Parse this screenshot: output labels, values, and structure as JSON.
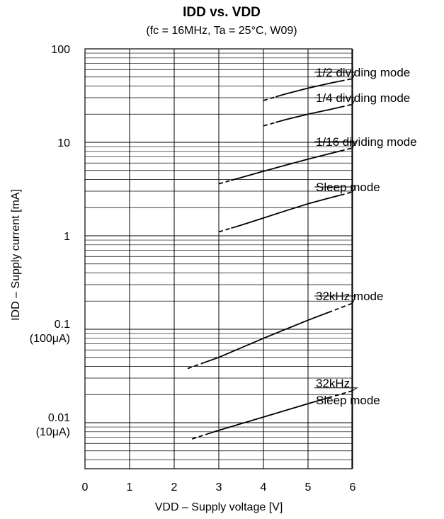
{
  "chart_data": {
    "type": "line",
    "title": "IDD vs. VDD",
    "subtitle": "(fc = 16MHz, Ta = 25°C, W09)",
    "xlabel": "VDD – Supply voltage [V]",
    "ylabel": "IDD – Supply current [mA]",
    "xlim": [
      0,
      6
    ],
    "x_axis_max": 6,
    "ylim": [
      0.003,
      100
    ],
    "yscale": "log",
    "grid": true,
    "x_ticks": [
      0,
      1,
      2,
      3,
      4,
      5,
      6
    ],
    "y_ticks": [
      {
        "value": 100,
        "label": "100",
        "sublabel": ""
      },
      {
        "value": 10,
        "label": "10",
        "sublabel": ""
      },
      {
        "value": 1,
        "label": "1",
        "sublabel": ""
      },
      {
        "value": 0.1,
        "label": "0.1",
        "sublabel": "(100μA)"
      },
      {
        "value": 0.01,
        "label": "0.01",
        "sublabel": "(10μA)"
      }
    ],
    "series": [
      {
        "name": "1/2 dividing mode",
        "x": [
          4.0,
          4.5,
          5.0,
          5.5,
          6.0
        ],
        "y": [
          28,
          33,
          38,
          43,
          48
        ]
      },
      {
        "name": "1/4 dividing mode",
        "x": [
          4.0,
          4.5,
          5.0,
          5.5,
          6.0
        ],
        "y": [
          15,
          17.5,
          20,
          22.5,
          25.5
        ]
      },
      {
        "name": "1/16 dividing mode",
        "x": [
          3.0,
          3.5,
          4.0,
          4.5,
          5.0,
          5.5,
          6.0
        ],
        "y": [
          3.6,
          4.2,
          4.9,
          5.7,
          6.6,
          7.6,
          8.7
        ]
      },
      {
        "name": "Sleep mode",
        "x": [
          3.0,
          3.5,
          4.0,
          4.5,
          5.0,
          5.5,
          6.0
        ],
        "y": [
          1.1,
          1.3,
          1.55,
          1.85,
          2.2,
          2.55,
          2.95
        ]
      },
      {
        "name": "32kHz mode",
        "x": [
          2.3,
          3.0,
          4.0,
          5.0,
          6.0
        ],
        "y": [
          0.038,
          0.05,
          0.08,
          0.125,
          0.19
        ]
      },
      {
        "name": "32kHz Sleep mode",
        "x": [
          2.4,
          3.0,
          4.0,
          5.0,
          6.0
        ],
        "y": [
          0.0067,
          0.0083,
          0.0115,
          0.016,
          0.022
        ]
      }
    ]
  }
}
